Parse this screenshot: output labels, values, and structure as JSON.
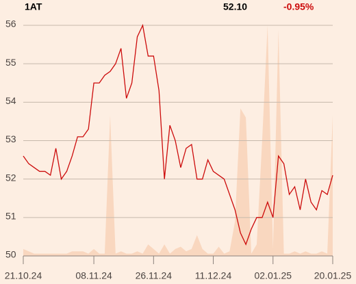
{
  "chart_data": [
    {
      "type": "line",
      "title": "1AT",
      "annotations": [
        "52.10",
        "-0.95%"
      ],
      "categories": [
        "21.10.24",
        null,
        null,
        null,
        null,
        null,
        null,
        null,
        null,
        null,
        null,
        null,
        null,
        "08.11.24",
        null,
        null,
        null,
        null,
        null,
        null,
        null,
        null,
        null,
        null,
        "26.11.24",
        null,
        null,
        null,
        null,
        null,
        null,
        null,
        null,
        null,
        null,
        "11.12.24",
        null,
        null,
        null,
        null,
        null,
        null,
        null,
        null,
        null,
        null,
        "02.01.25",
        null,
        null,
        null,
        null,
        null,
        null,
        null,
        null,
        null,
        null,
        "20.01.25"
      ],
      "values": [
        52.6,
        52.4,
        52.3,
        52.2,
        52.2,
        52.1,
        52.8,
        52.0,
        52.2,
        52.6,
        53.1,
        53.1,
        53.3,
        54.5,
        54.5,
        54.7,
        54.8,
        55.0,
        55.4,
        54.1,
        54.5,
        55.7,
        56.0,
        55.2,
        55.2,
        54.3,
        52.0,
        53.4,
        53.0,
        52.3,
        52.8,
        52.9,
        52.0,
        52.0,
        52.5,
        52.2,
        52.1,
        52.0,
        51.6,
        51.2,
        50.6,
        50.3,
        50.7,
        51.0,
        51.0,
        51.4,
        51.0,
        52.6,
        52.4,
        51.6,
        51.8,
        51.2,
        52.0,
        51.4,
        51.2,
        51.7,
        51.6,
        52.1
      ],
      "color": "#cc0a0a",
      "ylim": [
        50,
        56
      ],
      "yticks": [
        50,
        51,
        52,
        53,
        54,
        55,
        56
      ],
      "grid": true
    },
    {
      "type": "area",
      "color": "#f9d7bf",
      "ylim": [
        0,
        100
      ],
      "values": [
        3,
        2,
        1,
        1,
        1,
        1,
        1,
        1,
        1,
        2,
        2,
        2,
        1,
        3,
        1,
        1,
        61,
        1,
        2,
        1,
        1,
        2,
        1,
        5,
        3,
        1,
        5,
        1,
        3,
        4,
        2,
        3,
        9,
        3,
        1,
        1,
        4,
        1,
        2,
        15,
        64,
        60,
        1,
        5,
        50,
        100,
        3,
        98,
        1,
        1,
        2,
        1,
        2,
        1,
        1,
        2,
        1,
        61
      ]
    }
  ]
}
